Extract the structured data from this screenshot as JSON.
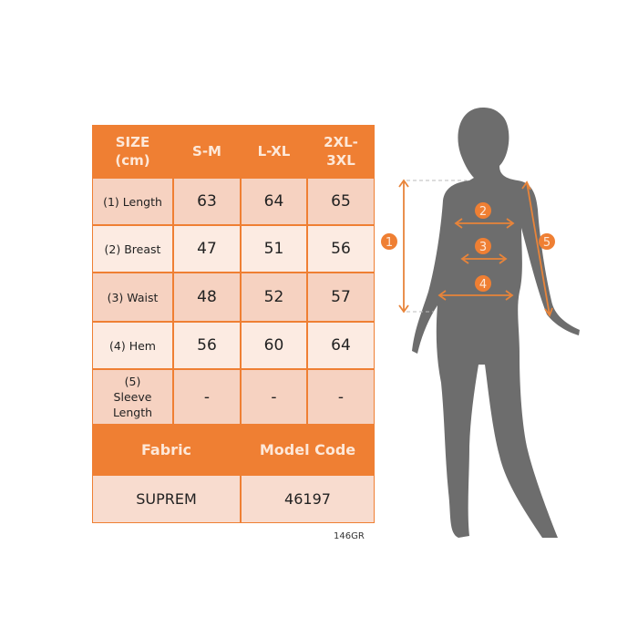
{
  "table": {
    "header": [
      "SIZE\n(cm)",
      "S-M",
      "L-XL",
      "2XL-\n3XL"
    ],
    "rows": [
      {
        "label": "(1) Length",
        "values": [
          "63",
          "64",
          "65"
        ]
      },
      {
        "label": "(2) Breast",
        "values": [
          "47",
          "51",
          "56"
        ]
      },
      {
        "label": "(3) Waist",
        "values": [
          "48",
          "52",
          "57"
        ]
      },
      {
        "label": "(4) Hem",
        "values": [
          "56",
          "60",
          "64"
        ]
      },
      {
        "label": "(5) Sleeve Length",
        "values": [
          "-",
          "-",
          "-"
        ]
      }
    ],
    "footer_header": [
      "Fabric",
      "Model Code"
    ],
    "footer_values": [
      "SUPREM",
      "46197"
    ]
  },
  "product_code": "146GR",
  "figure": {
    "markers": [
      "1",
      "2",
      "3",
      "4",
      "5"
    ]
  },
  "colors": {
    "accent": "#ef7f33",
    "silhouette": "#6d6d6d",
    "cell_dark": "#f6d2c1",
    "cell_light": "#fcebe2"
  }
}
